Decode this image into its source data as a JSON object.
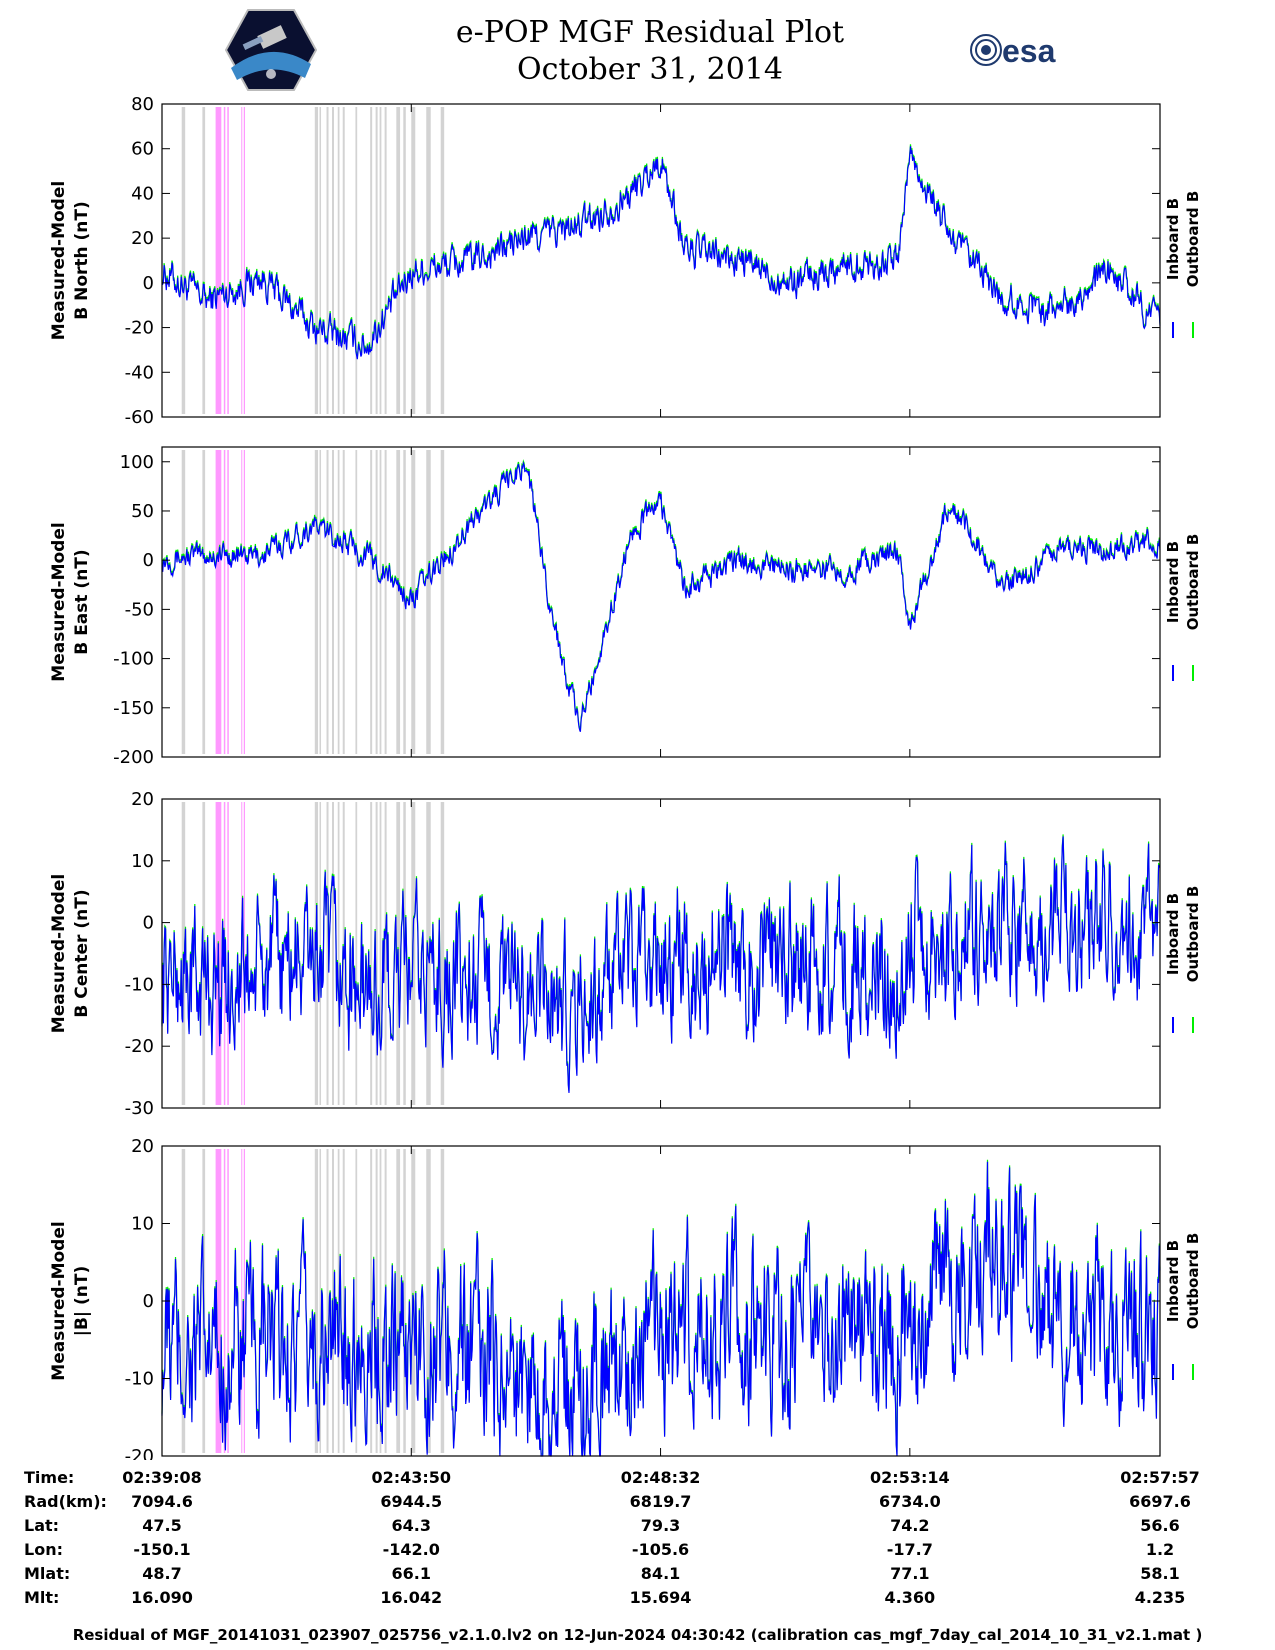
{
  "header": {
    "title_line1": "e-POP MGF Residual Plot",
    "title_line2": "October 31, 2014",
    "logo_left": "cassiope-mission-logo",
    "logo_right_text": "esa"
  },
  "colors": {
    "inboard": "#0000ff",
    "outboard": "#00ee00",
    "gray_band": "#d3d3d3",
    "pink_band": "#ff99ff"
  },
  "chart_data": [
    {
      "type": "line",
      "ylabel_line1": "Measured-Model",
      "ylabel_line2": "B North (nT)",
      "ylim": [
        -60,
        80
      ],
      "yticks": [
        "80",
        "60",
        "40",
        "20",
        "0",
        "-20",
        "-40",
        "-60"
      ],
      "series": [
        {
          "name": "Inboard B"
        },
        {
          "name": "Outboard B"
        }
      ],
      "x": [
        "02:39:08",
        "02:40",
        "02:41",
        "02:42",
        "02:43",
        "02:43:50",
        "02:45",
        "02:46",
        "02:47",
        "02:48",
        "02:48:32",
        "02:49",
        "02:50",
        "02:51",
        "02:52",
        "02:53",
        "02:53:14",
        "02:54",
        "02:55",
        "02:56",
        "02:57",
        "02:57:57"
      ],
      "values": [
        5,
        -8,
        2,
        -20,
        -28,
        5,
        10,
        20,
        25,
        40,
        55,
        15,
        10,
        0,
        8,
        10,
        58,
        20,
        -8,
        -12,
        5,
        -18
      ]
    },
    {
      "type": "line",
      "ylabel_line1": "Measured-Model",
      "ylabel_line2": "B East (nT)",
      "ylim": [
        -200,
        115
      ],
      "yticks": [
        "100",
        "50",
        "0",
        "-50",
        "-100",
        "-150",
        "-200"
      ],
      "series": [
        {
          "name": "Inboard B"
        },
        {
          "name": "Outboard B"
        }
      ],
      "x": [
        "02:39:08",
        "02:40",
        "02:41",
        "02:42",
        "02:43",
        "02:43:50",
        "02:45",
        "02:46",
        "02:46:30",
        "02:47",
        "02:48",
        "02:48:32",
        "02:49",
        "02:50",
        "02:51",
        "02:52",
        "02:53",
        "02:53:14",
        "02:54",
        "02:55",
        "02:56",
        "02:57",
        "02:57:57"
      ],
      "values": [
        2,
        5,
        4,
        35,
        5,
        -40,
        40,
        100,
        -60,
        -170,
        30,
        60,
        -30,
        0,
        -10,
        -10,
        10,
        -70,
        60,
        -30,
        10,
        10,
        20
      ]
    },
    {
      "type": "line",
      "ylabel_line1": "Measured-Model",
      "ylabel_line2": "B Center (nT)",
      "ylim": [
        -30,
        20
      ],
      "yticks": [
        "20",
        "10",
        "0",
        "-10",
        "-20",
        "-30"
      ],
      "series": [
        {
          "name": "Inboard B"
        },
        {
          "name": "Outboard B"
        }
      ],
      "x": [
        "02:39:08",
        "02:40",
        "02:41",
        "02:42",
        "02:43",
        "02:43:50",
        "02:45",
        "02:46",
        "02:47",
        "02:48",
        "02:48:32",
        "02:49",
        "02:50",
        "02:51",
        "02:52",
        "02:53",
        "02:53:14",
        "02:54",
        "02:55",
        "02:56",
        "02:57",
        "02:57:57"
      ],
      "values": [
        -8,
        -10,
        -8,
        -5,
        -12,
        -8,
        -10,
        -12,
        -14,
        -8,
        -6,
        -6,
        -6,
        -7,
        -6,
        -8,
        -2,
        -2,
        0,
        0,
        0,
        -3
      ]
    },
    {
      "type": "line",
      "ylabel_line1": "Measured-Model",
      "ylabel_line2": "|B| (nT)",
      "ylim": [
        -20,
        20
      ],
      "yticks": [
        "20",
        "10",
        "0",
        "-10",
        "-20"
      ],
      "series": [
        {
          "name": "Inboard B"
        },
        {
          "name": "Outboard B"
        }
      ],
      "x": [
        "02:39:08",
        "02:40",
        "02:41",
        "02:42",
        "02:43",
        "02:43:50",
        "02:45",
        "02:46",
        "02:47",
        "02:48",
        "02:48:32",
        "02:49",
        "02:50",
        "02:51",
        "02:52",
        "02:53",
        "02:53:14",
        "02:54",
        "02:55",
        "02:56",
        "02:57",
        "02:57:57"
      ],
      "values": [
        -6,
        -7,
        -6,
        -6,
        -5,
        -5,
        -6,
        -10,
        -12,
        -6,
        -4,
        -4,
        -4,
        -5,
        -6,
        -5,
        -3,
        3,
        6,
        0,
        -4,
        -3
      ]
    }
  ],
  "bands": {
    "gray": [
      [
        0.079,
        0.093
      ],
      [
        0.162,
        0.173
      ],
      [
        0.613,
        0.626
      ],
      [
        0.632,
        0.638
      ],
      [
        0.66,
        0.668
      ],
      [
        0.682,
        0.69
      ],
      [
        0.705,
        0.712
      ],
      [
        0.725,
        0.733
      ],
      [
        0.776,
        0.783
      ],
      [
        0.835,
        0.843
      ],
      [
        0.857,
        0.865
      ],
      [
        0.873,
        0.88
      ],
      [
        0.893,
        0.901
      ],
      [
        0.94,
        0.955
      ],
      [
        0.968,
        0.978
      ],
      [
        1.0,
        1.016
      ],
      [
        1.06,
        1.078
      ],
      [
        1.118,
        1.132
      ]
    ],
    "pink": [
      [
        0.215,
        0.238
      ],
      [
        0.248,
        0.254
      ],
      [
        0.262,
        0.268
      ],
      [
        0.318,
        0.322
      ],
      [
        0.328,
        0.333
      ]
    ]
  },
  "x_ticks": [
    "02:39:08",
    "02:43:50",
    "02:48:32",
    "02:53:14",
    "02:57:57"
  ],
  "orbit_table": {
    "rows": [
      {
        "label": "Time:",
        "values": [
          "02:39:08",
          "02:43:50",
          "02:48:32",
          "02:53:14",
          "02:57:57"
        ]
      },
      {
        "label": "Rad(km):",
        "values": [
          "7094.6",
          "6944.5",
          "6819.7",
          "6734.0",
          "6697.6"
        ]
      },
      {
        "label": "Lat:",
        "values": [
          "47.5",
          "64.3",
          "79.3",
          "74.2",
          "56.6"
        ]
      },
      {
        "label": "Lon:",
        "values": [
          "-150.1",
          "-142.0",
          "-105.6",
          "-17.7",
          "1.2"
        ]
      },
      {
        "label": "Mlat:",
        "values": [
          "48.7",
          "66.1",
          "84.1",
          "77.1",
          "58.1"
        ]
      },
      {
        "label": "Mlt:",
        "values": [
          "16.090",
          "16.042",
          "15.694",
          "4.360",
          "4.235"
        ]
      }
    ]
  },
  "footer": "Residual of MGF_20141031_023907_025756_v2.1.0.lv2 on 12-Jun-2024 04:30:42 (calibration cas_mgf_7day_cal_2014_10_31_v2.1.mat )"
}
